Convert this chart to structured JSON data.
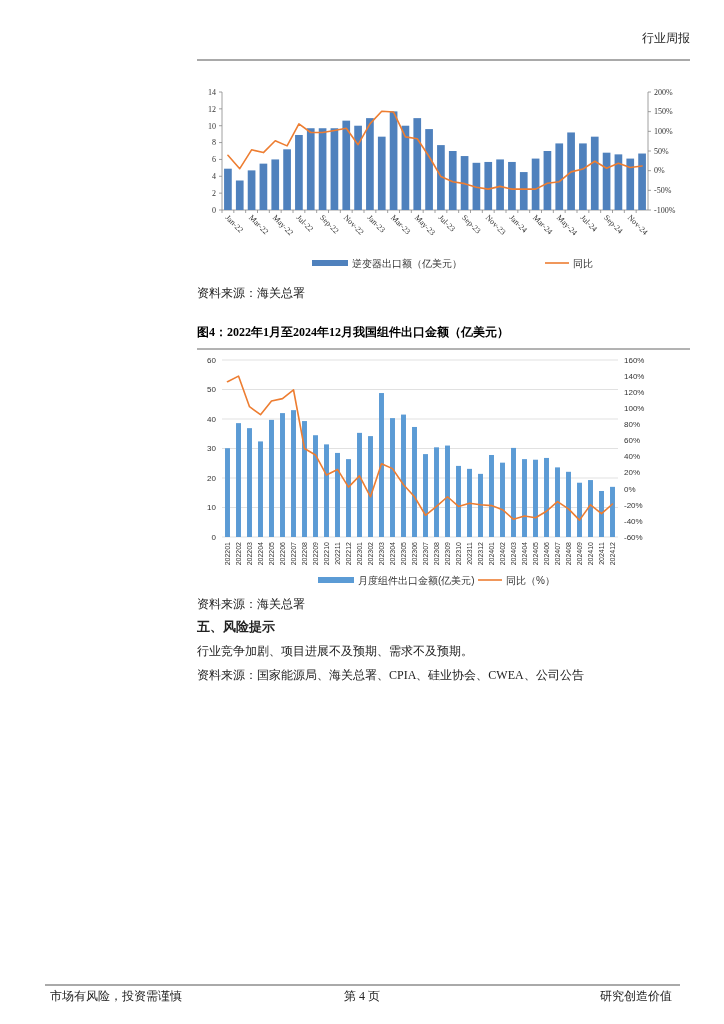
{
  "chart_data": [
    {
      "type": "bar",
      "categories": [
        "Jan-22",
        null,
        "Mar-22",
        null,
        "May-22",
        null,
        "Jul-22",
        null,
        "Sep-22",
        null,
        "Nov-22",
        null,
        "Jan-23",
        null,
        "Mar-23",
        null,
        "May-23",
        null,
        "Jul-23",
        null,
        "Sep-23",
        null,
        "Nov-23",
        null,
        "Jan-24",
        null,
        "Mar-24",
        null,
        "May-24",
        null,
        "Jul-24",
        null,
        "Sep-24",
        null,
        "Nov-24",
        null
      ],
      "series": [
        {
          "name": "逆变器出口额（亿美元）",
          "color": "#4f81bd",
          "values": [
            4.9,
            3.5,
            4.7,
            5.5,
            6.0,
            7.2,
            8.9,
            9.7,
            9.7,
            9.7,
            10.6,
            10.0,
            10.9,
            8.7,
            11.7,
            10.0,
            10.9,
            9.6,
            7.7,
            7.0,
            6.4,
            5.6,
            5.7,
            6.0,
            5.7,
            4.5,
            6.1,
            7.0,
            7.9,
            9.2,
            7.9,
            8.7,
            6.8,
            6.6,
            6.1,
            6.7
          ]
        },
        {
          "name": "同比",
          "type": "line",
          "axis": "y2",
          "color": "#ed7d31",
          "values": [
            39,
            5,
            53,
            46,
            76,
            63,
            119,
            97,
            97,
            102,
            108,
            66,
            119,
            151,
            149,
            86,
            81,
            36,
            -15,
            -28,
            -33,
            -42,
            -47,
            -40,
            -47,
            -47,
            -47,
            -32,
            -28,
            -3,
            4,
            24,
            6,
            19,
            8,
            12
          ]
        }
      ],
      "ylim": [
        0,
        14
      ],
      "yticks": [
        0,
        2,
        4,
        6,
        8,
        10,
        12,
        14
      ],
      "y2lim": [
        -100,
        200
      ],
      "y2ticks": [
        {
          "value": -100,
          "label": "-100%"
        },
        {
          "value": -50,
          "label": "-50%"
        },
        {
          "value": 0,
          "label": "0%"
        },
        {
          "value": 50,
          "label": "50%"
        },
        {
          "value": 100,
          "label": "100%"
        },
        {
          "value": 150,
          "label": "150%"
        },
        {
          "value": 200,
          "label": "200%"
        }
      ],
      "legend": "bottom",
      "annotations": [
        "行业周报",
        "资料来源：海关总署"
      ]
    },
    {
      "type": "bar",
      "title": "图4：2022年1月至2024年12月我国组件出口金额（亿美元）",
      "categories": [
        "202201",
        "202202",
        "202203",
        "202204",
        "202205",
        "202206",
        "202207",
        "202208",
        "202209",
        "202210",
        "202211",
        "202212",
        "202301",
        "202302",
        "202303",
        "202304",
        "202305",
        "202306",
        "202307",
        "202308",
        "202309",
        "202310",
        "202311",
        "202312",
        "202401",
        "202402",
        "202403",
        "202404",
        "202405",
        "202406",
        "202407",
        "202408",
        "202409",
        "202410",
        "202411",
        "202412"
      ],
      "series": [
        {
          "name": "月度组件出口金额(亿美元)",
          "color": "#5b9bd5",
          "values": [
            30.1,
            38.6,
            36.9,
            32.4,
            39.7,
            42.0,
            43.0,
            39.3,
            34.5,
            31.4,
            28.5,
            26.4,
            35.3,
            34.2,
            48.8,
            40.3,
            41.5,
            37.3,
            28.1,
            30.4,
            31.0,
            24.1,
            23.1,
            21.4,
            27.8,
            25.2,
            30.2,
            26.4,
            26.2,
            26.8,
            23.6,
            22.1,
            18.4,
            19.3,
            15.6,
            17.0
          ]
        },
        {
          "name": "同比（%）",
          "type": "line",
          "axis": "y2",
          "color": "#ed7d31",
          "values": [
            133,
            140,
            102,
            92,
            109,
            112,
            123,
            50,
            42,
            17,
            24,
            2,
            16,
            -10,
            31,
            25,
            5,
            -10,
            -33,
            -22,
            -10,
            -22,
            -18,
            -20,
            -21,
            -26,
            -38,
            -34,
            -36,
            -28,
            -16,
            -25,
            -39,
            -20,
            -31,
            -19
          ]
        }
      ],
      "ylim": [
        0,
        60
      ],
      "yticks": [
        0,
        10,
        20,
        30,
        40,
        50,
        60
      ],
      "y2lim": [
        -60,
        160
      ],
      "y2ticks": [
        {
          "value": -60,
          "label": "-60%"
        },
        {
          "value": -40,
          "label": "-40%"
        },
        {
          "value": -20,
          "label": "-20%"
        },
        {
          "value": 0,
          "label": "0%"
        },
        {
          "value": 20,
          "label": "20%"
        },
        {
          "value": 40,
          "label": "40%"
        },
        {
          "value": 60,
          "label": "60%"
        },
        {
          "value": 80,
          "label": "80%"
        },
        {
          "value": 100,
          "label": "100%"
        },
        {
          "value": 120,
          "label": "120%"
        },
        {
          "value": 140,
          "label": "140%"
        },
        {
          "value": 160,
          "label": "160%"
        }
      ],
      "grid": "y",
      "legend": "bottom",
      "annotations": [
        "资料来源：海关总署",
        "五、风险提示",
        "行业竞争加剧、项目进展不及预期、需求不及预期。",
        "资料来源：国家能源局、海关总署、CPIA、硅业协会、CWEA、公司公告",
        "市场有风险，投资需谨慎",
        "第 4 页",
        "研究创造价值"
      ]
    }
  ]
}
